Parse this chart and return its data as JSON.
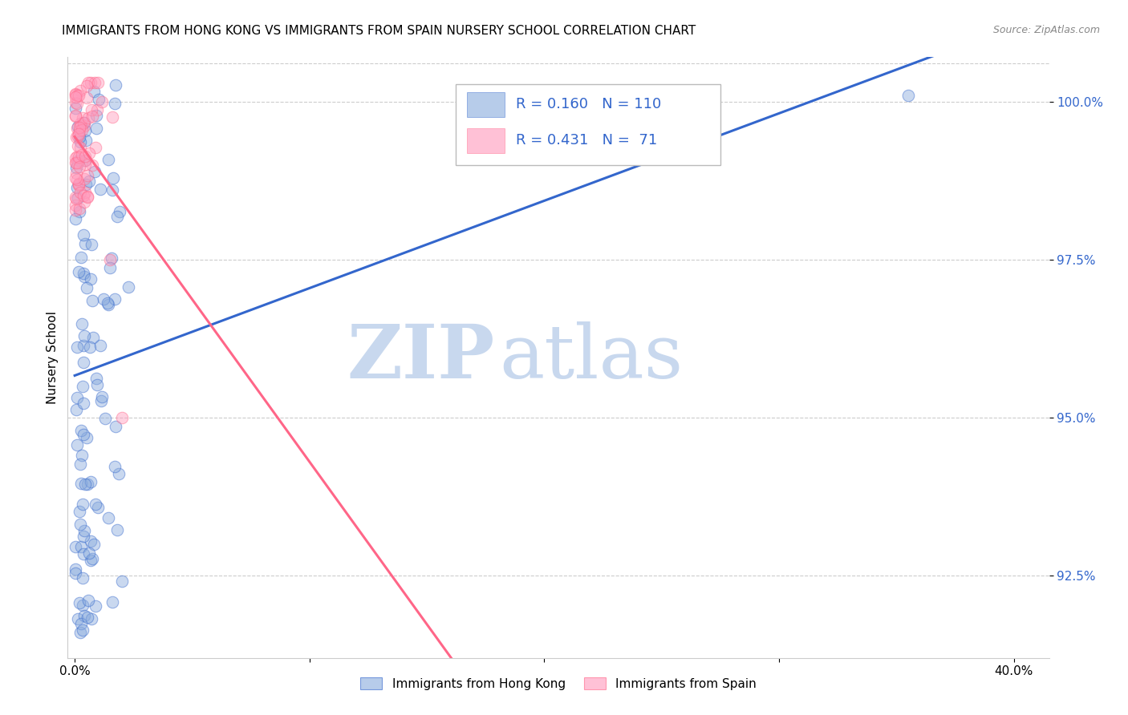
{
  "title": "IMMIGRANTS FROM HONG KONG VS IMMIGRANTS FROM SPAIN NURSERY SCHOOL CORRELATION CHART",
  "source": "Source: ZipAtlas.com",
  "ylabel": "Nursery School",
  "ytick_vals": [
    92.5,
    95.0,
    97.5,
    100.0
  ],
  "ytick_labels": [
    "92.5%",
    "95.0%",
    "97.5%",
    "100.0%"
  ],
  "ylim": [
    91.2,
    100.7
  ],
  "xlim": [
    -0.003,
    0.415
  ],
  "blue_color": "#88AADD",
  "pink_color": "#FF99BB",
  "blue_line_color": "#3366CC",
  "pink_line_color": "#FF6688",
  "blue_fill_color": "#AABBEE",
  "pink_fill_color": "#FFBBCC",
  "watermark_zip": "ZIP",
  "watermark_atlas": "atlas",
  "legend_R_blue": "R = 0.160",
  "legend_N_blue": "N = 110",
  "legend_R_pink": "R = 0.431",
  "legend_N_pink": " 71",
  "title_fontsize": 11,
  "tick_fontsize": 11
}
